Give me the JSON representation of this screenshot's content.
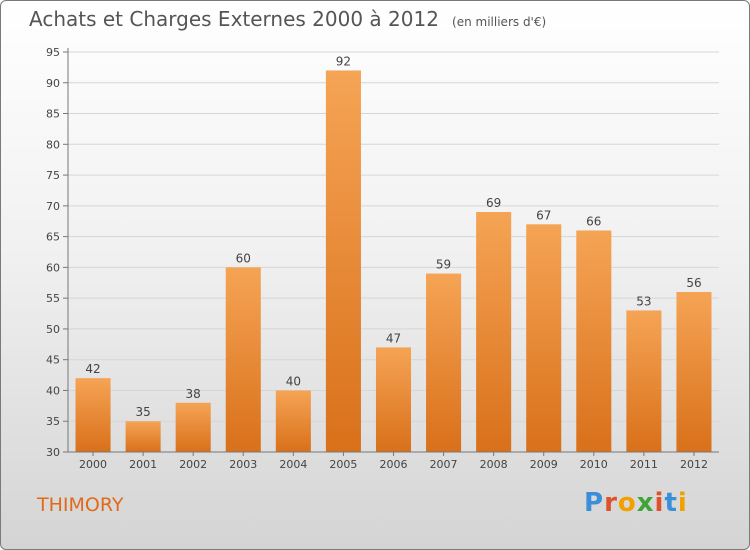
{
  "header": {
    "title": "Achats et Charges Externes 2000 à 2012",
    "unit": "(en milliers d'€)"
  },
  "commune": "THIMORY",
  "logo": {
    "text": "Proxiti",
    "colors": [
      "#3a8fd8",
      "#e0502a",
      "#f2a000",
      "#3fa535",
      "#e0502a",
      "#3a8fd8",
      "#f2a000"
    ]
  },
  "colors": {
    "bar_light": "#f5a455",
    "bar_dark": "#d9701a",
    "grid": "#d6d6d6",
    "axis": "#777777",
    "accent": "#e06a1a"
  },
  "chart_data": {
    "type": "bar",
    "categories": [
      "2000",
      "2001",
      "2002",
      "2003",
      "2004",
      "2005",
      "2006",
      "2007",
      "2008",
      "2009",
      "2010",
      "2011",
      "2012"
    ],
    "values": [
      42,
      35,
      38,
      60,
      40,
      92,
      47,
      59,
      69,
      67,
      66,
      53,
      56
    ],
    "ylim": [
      30,
      95
    ],
    "yticks": [
      30,
      35,
      40,
      45,
      50,
      55,
      60,
      65,
      70,
      75,
      80,
      85,
      90,
      95
    ],
    "grid": true,
    "xlabel": "",
    "ylabel": ""
  }
}
